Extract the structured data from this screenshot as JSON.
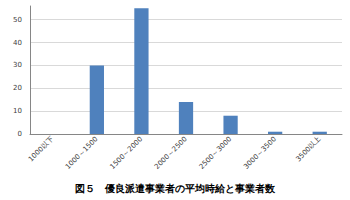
{
  "chart_data": {
    "type": "bar",
    "title": "図５　優良派遣事業者の平均時給と事業者数",
    "categories": [
      "1000以下",
      "1000～1500",
      "1500～2000",
      "2000～2500",
      "2500～3000",
      "3000～3500",
      "3500以上"
    ],
    "values": [
      0,
      30,
      55,
      14,
      8,
      1,
      1
    ],
    "color": "#4f81bd",
    "ylim": [
      0,
      56
    ],
    "yticks": [
      0,
      10,
      20,
      30,
      40,
      50
    ],
    "grid": true
  }
}
